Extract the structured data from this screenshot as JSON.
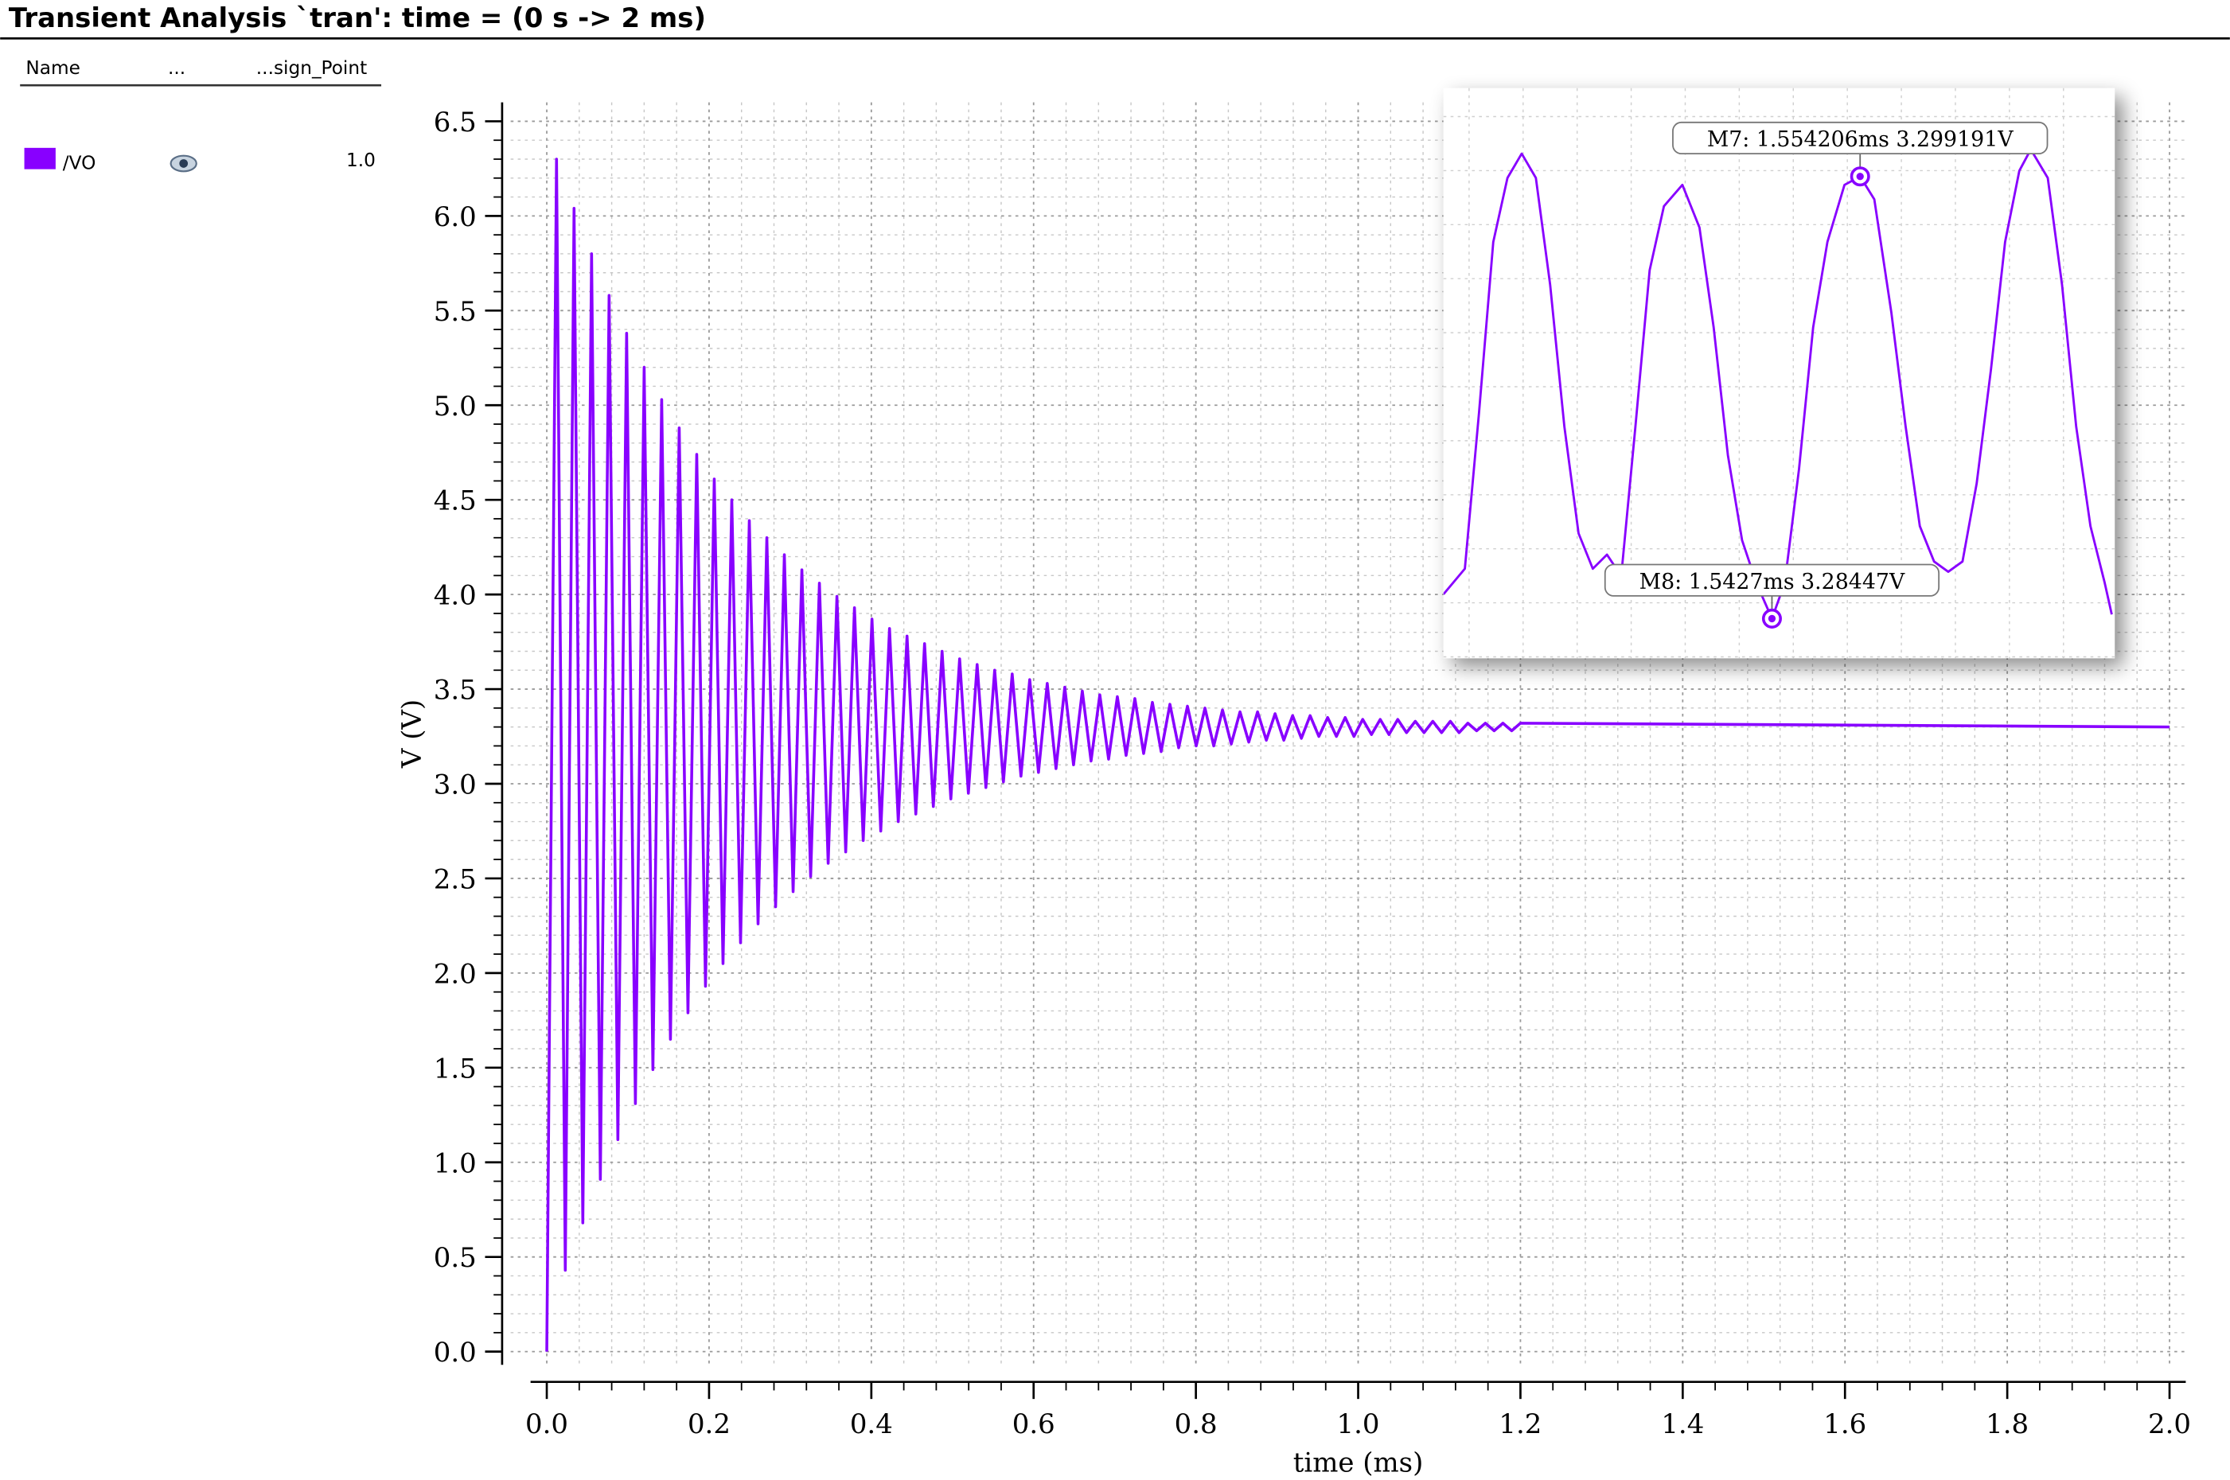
{
  "legend_panel": {
    "columns": [
      "Name",
      "...",
      "...sign_Point"
    ],
    "rows": [
      {
        "value": "1.0"
      }
    ]
  },
  "chart_data": [
    {
      "type": "line",
      "title": "Transient Analysis `tran': time = (0 s -> 2 ms)",
      "xlabel": "time (ms)",
      "ylabel": "V (V)",
      "grid": true,
      "xlim": [
        -0.02,
        2.02
      ],
      "ylim": [
        -0.07,
        6.6
      ],
      "xticks": [
        {
          "value": 0,
          "label": "0.0"
        },
        0.2,
        0.4,
        0.6,
        0.8,
        {
          "value": 1,
          "label": "1.0"
        },
        1.2,
        1.4,
        1.6,
        1.8,
        {
          "value": 2,
          "label": "2.0"
        }
      ],
      "yticks": [
        {
          "value": 0,
          "label": "0.0"
        },
        0.5,
        {
          "value": 1,
          "label": "1.0"
        },
        1.5,
        {
          "value": 2,
          "label": "2.0"
        },
        2.5,
        {
          "value": 3,
          "label": "3.0"
        },
        3.5,
        {
          "value": 4,
          "label": "4.0"
        },
        4.5,
        {
          "value": 5,
          "label": "5.0"
        },
        5.5,
        {
          "value": 6,
          "label": "6.0"
        },
        6.5
      ],
      "x": [
        0,
        0.012,
        0.0228,
        0.0336,
        0.0444,
        0.0552,
        0.066,
        0.0768,
        0.0876,
        0.0984,
        0.1092,
        0.12,
        0.1308,
        0.1416,
        0.1524,
        0.1632,
        0.174,
        0.1848,
        0.1956,
        0.2064,
        0.2172,
        0.228,
        0.2388,
        0.2496,
        0.2604,
        0.2712,
        0.282,
        0.2928,
        0.3036,
        0.3144,
        0.3252,
        0.336,
        0.3468,
        0.3576,
        0.3684,
        0.3792,
        0.39,
        0.4008,
        0.4116,
        0.4224,
        0.4332,
        0.444,
        0.4548,
        0.4656,
        0.4764,
        0.4872,
        0.498,
        0.5088,
        0.5196,
        0.5304,
        0.5412,
        0.552,
        0.5628,
        0.5736,
        0.5844,
        0.5952,
        0.606,
        0.6168,
        0.6276,
        0.6384,
        0.6492,
        0.66,
        0.6708,
        0.6816,
        0.6924,
        0.7032,
        0.714,
        0.7248,
        0.7356,
        0.7464,
        0.7572,
        0.768,
        0.7788,
        0.7896,
        0.8004,
        0.8112,
        0.822,
        0.8328,
        0.8436,
        0.8544,
        0.8652,
        0.876,
        0.8868,
        0.8976,
        0.9084,
        0.9192,
        0.93,
        0.9408,
        0.9516,
        0.9624,
        0.9732,
        0.984,
        0.9948,
        1.0056,
        1.0164,
        1.0272,
        1.038,
        1.0488,
        1.0596,
        1.0704,
        1.0812,
        1.092,
        1.1028,
        1.1136,
        1.1244,
        1.1352,
        1.146,
        1.1568,
        1.1676,
        1.1784,
        1.1892,
        1.2,
        2.0
      ],
      "series": [
        {
          "name": "/VO",
          "color": "#8800ff",
          "values": [
            0,
            6.3,
            0.43,
            6.04,
            0.68,
            5.8,
            0.91,
            5.58,
            1.12,
            5.38,
            1.31,
            5.2,
            1.49,
            5.03,
            1.65,
            4.88,
            1.79,
            4.74,
            1.93,
            4.61,
            2.05,
            4.5,
            2.16,
            4.39,
            2.26,
            4.3,
            2.35,
            4.21,
            2.43,
            4.13,
            2.51,
            4.06,
            2.58,
            3.99,
            2.64,
            3.93,
            2.7,
            3.87,
            2.75,
            3.82,
            2.8,
            3.78,
            2.84,
            3.74,
            2.88,
            3.7,
            2.92,
            3.66,
            2.95,
            3.63,
            2.98,
            3.6,
            3.01,
            3.58,
            3.04,
            3.55,
            3.06,
            3.53,
            3.08,
            3.51,
            3.1,
            3.49,
            3.12,
            3.47,
            3.13,
            3.46,
            3.15,
            3.45,
            3.16,
            3.43,
            3.17,
            3.42,
            3.19,
            3.41,
            3.2,
            3.4,
            3.2,
            3.39,
            3.21,
            3.38,
            3.22,
            3.38,
            3.23,
            3.37,
            3.23,
            3.36,
            3.24,
            3.36,
            3.25,
            3.35,
            3.25,
            3.35,
            3.25,
            3.34,
            3.26,
            3.34,
            3.26,
            3.34,
            3.27,
            3.33,
            3.27,
            3.33,
            3.27,
            3.33,
            3.27,
            3.32,
            3.28,
            3.32,
            3.28,
            3.32,
            3.28,
            3.32,
            3.3
          ]
        }
      ]
    },
    {
      "type": "line",
      "grid": true,
      "color": "#8800ff",
      "xlim": [
        1.49983,
        1.58743
      ],
      "ylim": [
        3.28315,
        3.30213
      ],
      "x": [
        1.49983,
        1.50262,
        1.50447,
        1.50633,
        1.50818,
        1.51004,
        1.51189,
        1.51375,
        1.51561,
        1.51746,
        1.51932,
        1.52117,
        1.52303,
        1.52488,
        1.52674,
        1.5286,
        1.53101,
        1.53324,
        1.53509,
        1.53695,
        1.5388,
        1.54066,
        1.5427,
        1.54437,
        1.54623,
        1.54808,
        1.54994,
        1.55217,
        1.55421,
        1.55606,
        1.55829,
        1.56015,
        1.562,
        1.56386,
        1.56571,
        1.56757,
        1.56942,
        1.57128,
        1.57313,
        1.57499,
        1.57648,
        1.5787,
        1.58056,
        1.58241,
        1.58427,
        1.58613,
        1.58705
      ],
      "values": [
        3.28528,
        3.28613,
        3.29133,
        3.29701,
        3.29914,
        3.29995,
        3.29914,
        3.29559,
        3.29086,
        3.28731,
        3.28613,
        3.2866,
        3.28589,
        3.29086,
        3.29607,
        3.2982,
        3.29891,
        3.29749,
        3.29417,
        3.28991,
        3.28708,
        3.28566,
        3.28447,
        3.28566,
        3.28944,
        3.29417,
        3.29701,
        3.29891,
        3.29919,
        3.29843,
        3.29465,
        3.29086,
        3.28755,
        3.28637,
        3.28603,
        3.28637,
        3.28897,
        3.29275,
        3.29701,
        3.29938,
        3.30009,
        3.29914,
        3.29559,
        3.29086,
        3.28755,
        3.28566,
        3.28461
      ],
      "markers": [
        {
          "label": "M7: 1.554206ms 3.299191V",
          "x": 1.554206,
          "y": 3.299191
        },
        {
          "label": "M8: 1.5427ms 3.28447V",
          "x": 1.5427,
          "y": 3.28447
        }
      ]
    }
  ]
}
